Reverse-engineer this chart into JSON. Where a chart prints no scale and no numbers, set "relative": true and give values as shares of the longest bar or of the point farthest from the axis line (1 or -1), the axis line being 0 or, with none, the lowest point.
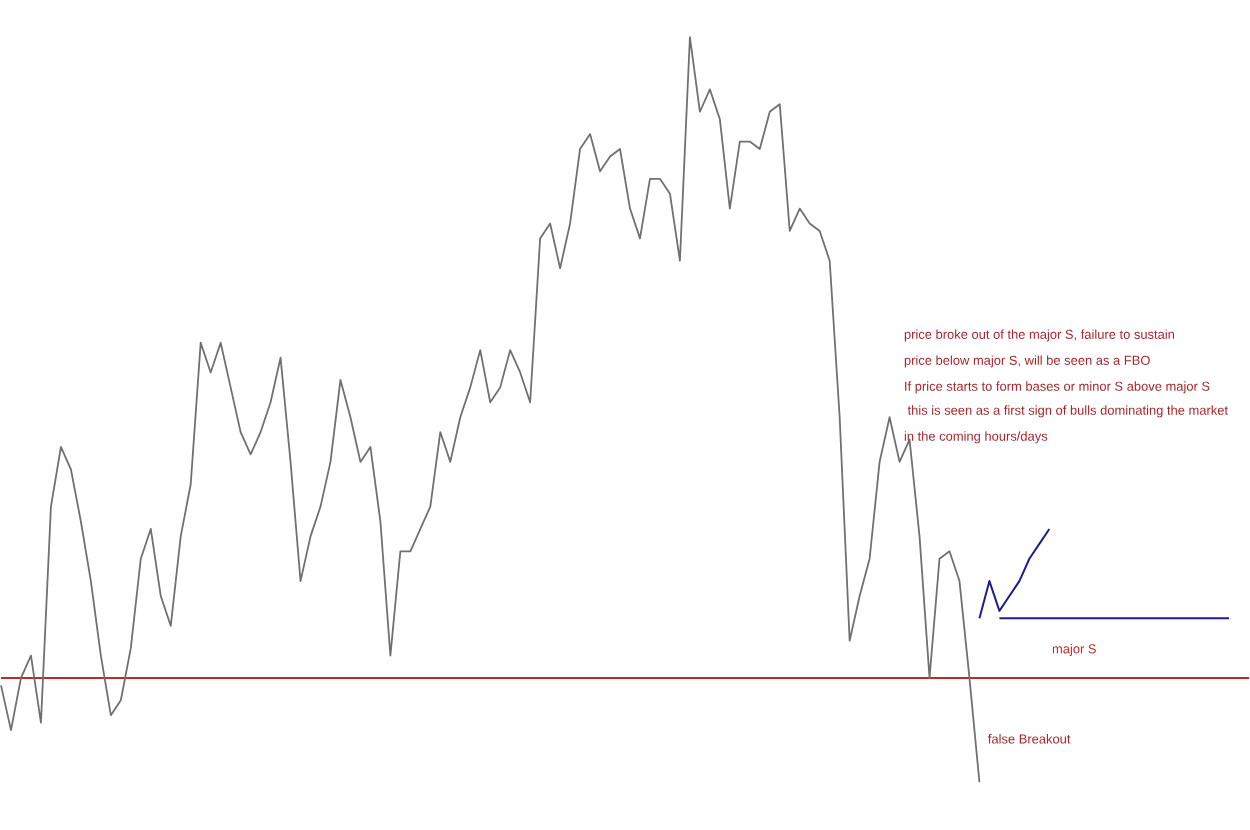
{
  "chart_data": {
    "type": "line",
    "relative": true,
    "categories": [
      null,
      null,
      null,
      null,
      null,
      null,
      null,
      null,
      null,
      null,
      null,
      null,
      null,
      null,
      null,
      null,
      null,
      null,
      null,
      null,
      null,
      null,
      null,
      null,
      null,
      null,
      null,
      null,
      null,
      null,
      null,
      null,
      null,
      null,
      null,
      null,
      null,
      null,
      null,
      null,
      null,
      null,
      null,
      null,
      null,
      null,
      null,
      null,
      null,
      null,
      null,
      null,
      null,
      null,
      null,
      null,
      null,
      null,
      null,
      null,
      null,
      null,
      null,
      null,
      null,
      null,
      null,
      null,
      null,
      null,
      null,
      null,
      null,
      null,
      null,
      null,
      null,
      null,
      null,
      null,
      null,
      null,
      null,
      null,
      null,
      null,
      null,
      null,
      null,
      null,
      null,
      null,
      null,
      null,
      null,
      null,
      null,
      null,
      null,
      null,
      null,
      null,
      null,
      null,
      null,
      null,
      null,
      null,
      null,
      null,
      null,
      null,
      null,
      null,
      null,
      null,
      null,
      null,
      null,
      null,
      null,
      null,
      null,
      null
    ],
    "series": [
      {
        "color": "#707070",
        "values": [
          0.13,
          0.07,
          0.14,
          0.17,
          0.08,
          0.37,
          0.45,
          0.42,
          0.35,
          0.27,
          0.17,
          0.09,
          0.11,
          0.18,
          0.3,
          0.34,
          0.25,
          0.21,
          0.33,
          0.4,
          0.59,
          0.55,
          0.59,
          0.53,
          0.47,
          0.44,
          0.47,
          0.51,
          0.57,
          0.43,
          0.27,
          0.33,
          0.37,
          0.43,
          0.54,
          0.49,
          0.43,
          0.45,
          0.35,
          0.17,
          0.31,
          0.31,
          0.34,
          0.37,
          0.47,
          0.43,
          0.49,
          0.53,
          0.58,
          0.51,
          0.53,
          0.58,
          0.55,
          0.51,
          0.73,
          0.75,
          0.69,
          0.75,
          0.85,
          0.87,
          0.82,
          0.84,
          0.85,
          0.77,
          0.73,
          0.81,
          0.81,
          0.79,
          0.7,
          1.0,
          0.9,
          0.93,
          0.89,
          0.77,
          0.86,
          0.86,
          0.85,
          0.9,
          0.91,
          0.74,
          0.77,
          0.75,
          0.74,
          0.7,
          0.49,
          0.19,
          0.25,
          0.3,
          0.43,
          0.49,
          0.43,
          0.46,
          0.33,
          0.14,
          0.3,
          0.31,
          0.27,
          0.14,
          0.0,
          null,
          null,
          null,
          null,
          null,
          null,
          null,
          null,
          null,
          null,
          null,
          null,
          null,
          null,
          null,
          null,
          null,
          null,
          null,
          null,
          null,
          null,
          null,
          null,
          null
        ]
      },
      {
        "color": "#1a1f8c",
        "values": [
          null,
          null,
          null,
          null,
          null,
          null,
          null,
          null,
          null,
          null,
          null,
          null,
          null,
          null,
          null,
          null,
          null,
          null,
          null,
          null,
          null,
          null,
          null,
          null,
          null,
          null,
          null,
          null,
          null,
          null,
          null,
          null,
          null,
          null,
          null,
          null,
          null,
          null,
          null,
          null,
          null,
          null,
          null,
          null,
          null,
          null,
          null,
          null,
          null,
          null,
          null,
          null,
          null,
          null,
          null,
          null,
          null,
          null,
          null,
          null,
          null,
          null,
          null,
          null,
          null,
          null,
          null,
          null,
          null,
          null,
          null,
          null,
          null,
          null,
          null,
          null,
          null,
          null,
          null,
          null,
          null,
          null,
          null,
          null,
          null,
          null,
          null,
          null,
          null,
          null,
          null,
          null,
          null,
          null,
          null,
          null,
          null,
          null,
          0.22,
          0.27,
          0.23,
          0.25,
          0.27,
          0.3,
          0.32,
          0.34,
          null,
          null,
          null,
          null,
          null,
          null,
          null,
          null,
          null,
          null,
          null,
          null,
          null,
          null,
          null,
          null,
          null,
          null
        ]
      },
      {
        "color": "#1a1f8c",
        "values": [
          null,
          null,
          null,
          null,
          null,
          null,
          null,
          null,
          null,
          null,
          null,
          null,
          null,
          null,
          null,
          null,
          null,
          null,
          null,
          null,
          null,
          null,
          null,
          null,
          null,
          null,
          null,
          null,
          null,
          null,
          null,
          null,
          null,
          null,
          null,
          null,
          null,
          null,
          null,
          null,
          null,
          null,
          null,
          null,
          null,
          null,
          null,
          null,
          null,
          null,
          null,
          null,
          null,
          null,
          null,
          null,
          null,
          null,
          null,
          null,
          null,
          null,
          null,
          null,
          null,
          null,
          null,
          null,
          null,
          null,
          null,
          null,
          null,
          null,
          null,
          null,
          null,
          null,
          null,
          null,
          null,
          null,
          null,
          null,
          null,
          null,
          null,
          null,
          null,
          null,
          null,
          null,
          null,
          null,
          null,
          null,
          null,
          null,
          null,
          null,
          0.22,
          0.22,
          0.22,
          0.22,
          0.22,
          0.22,
          0.22,
          0.22,
          0.22,
          0.22,
          0.22,
          0.22,
          0.22,
          0.22,
          0.22,
          0.22,
          0.22,
          0.22,
          0.22,
          0.22,
          0.22,
          0.22,
          0.22,
          0.22
        ]
      }
    ],
    "ref_lines": [
      {
        "axis": "y",
        "value": 0.14,
        "label": "major S",
        "color": "#c0282d"
      }
    ],
    "annotations": [
      "price broke out of the major S, failure to sustain",
      "price below major S, will be seen as a FBO",
      "If price starts to form bases or minor S above major S",
      " this is seen as a first sign of bulls dominating the market",
      "in the coming hours/days",
      "false Breakout"
    ]
  }
}
